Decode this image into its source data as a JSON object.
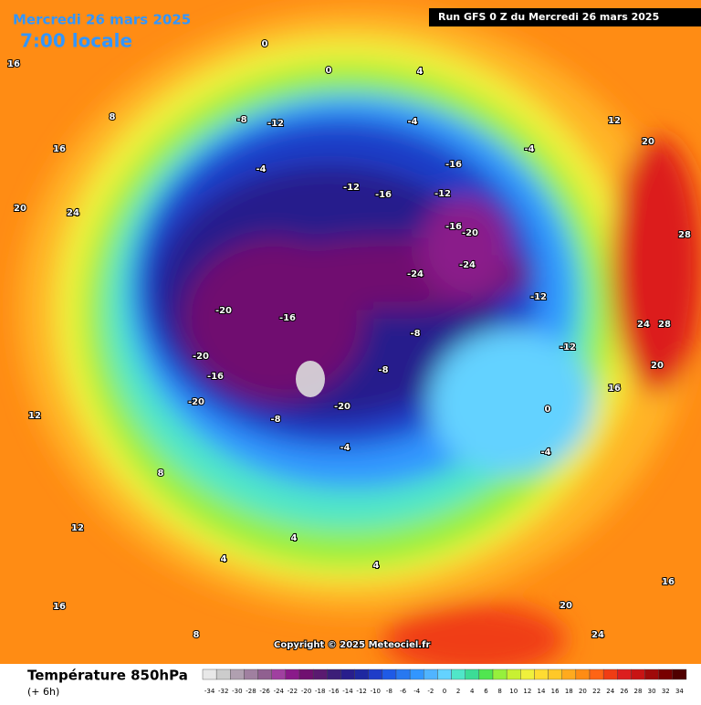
{
  "header": {
    "date": "Mercredi 26 mars 2025",
    "time": "7:00 locale",
    "run": "Run GFS 0 Z du Mercredi 26 mars 2025"
  },
  "copyright": "Copyright © 2025 Meteociel.fr",
  "map": {
    "labels": [
      -20,
      -20,
      -20,
      -16,
      -16,
      -24,
      -24,
      -20,
      -16,
      -12,
      -16,
      -12,
      -16,
      -12,
      -8,
      -8,
      -8,
      -12,
      -12,
      -4,
      0,
      4,
      0,
      -4,
      0,
      -4,
      -4,
      -8,
      4,
      4,
      4,
      8,
      8,
      12,
      12,
      16,
      16,
      16,
      20,
      24,
      20,
      24,
      28,
      28,
      20,
      24,
      16,
      12,
      8,
      16,
      20,
      -20,
      -4
    ]
  },
  "legend": {
    "title": "Température 850hPa",
    "subtitle": "(+ 6h)",
    "ticks": [
      -34,
      -32,
      -30,
      -28,
      -26,
      -24,
      -22,
      -20,
      -18,
      -16,
      -14,
      -12,
      -10,
      -8,
      -6,
      -4,
      -2,
      0,
      2,
      4,
      6,
      8,
      10,
      12,
      14,
      16,
      18,
      20,
      22,
      24,
      26,
      28,
      30,
      32,
      34
    ],
    "colors": [
      "#e8e8e8",
      "#cccccc",
      "#b0a0b0",
      "#a080a0",
      "#906090",
      "#a040a0",
      "#8a1a8a",
      "#701070",
      "#5a1a70",
      "#3c1e78",
      "#281e8c",
      "#1e28a0",
      "#1e3cc8",
      "#1e5ae6",
      "#2878f0",
      "#3296ff",
      "#50b4ff",
      "#64d2ff",
      "#50e6c8",
      "#3cdc96",
      "#50e650",
      "#96f03c",
      "#c8f032",
      "#f0f03c",
      "#ffdc32",
      "#ffc828",
      "#ffaa1e",
      "#ff8c14",
      "#ff6414",
      "#f03c14",
      "#dc1e1e",
      "#c81414",
      "#a00a0a",
      "#780000",
      "#500000"
    ]
  }
}
